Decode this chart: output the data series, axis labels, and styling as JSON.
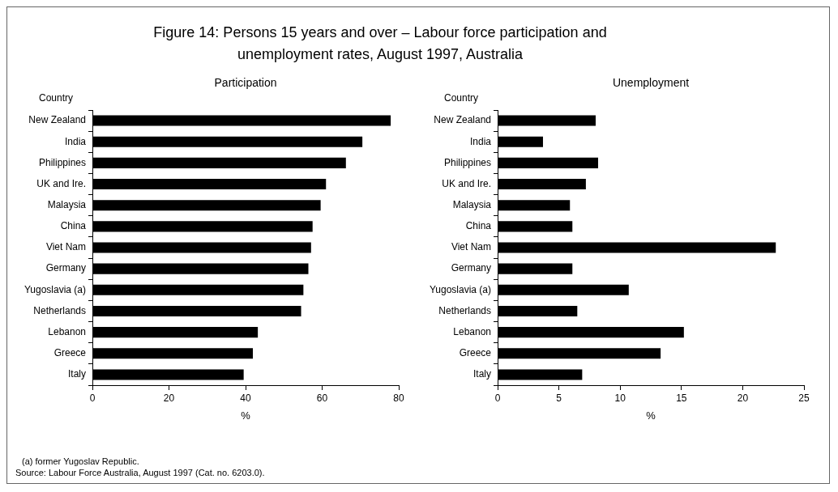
{
  "chart_data": [
    {
      "type": "bar",
      "orientation": "horizontal",
      "title": "Figure 14: Persons 15 years and over – Labour force participation and unemployment rates, August 1997, Australia",
      "subtitle": "Participation",
      "ylabel": "Country",
      "xlabel": "%",
      "categories": [
        "New Zealand",
        "India",
        "Philippines",
        "UK and Ire.",
        "Malaysia",
        "China",
        "Viet Nam",
        "Germany",
        "Yugoslavia (a)",
        "Netherlands",
        "Lebanon",
        "Greece",
        "Italy"
      ],
      "values": [
        77.9,
        70.5,
        66.2,
        61.0,
        59.6,
        57.5,
        57.1,
        56.4,
        55.1,
        54.5,
        43.2,
        41.9,
        39.5
      ],
      "color": "#000000",
      "xlim": [
        0,
        80
      ],
      "xticks": [
        0,
        20,
        40,
        60,
        80
      ],
      "grid": false,
      "annotations": [
        "(a) former Yugoslav Republic.",
        "Source: Labour Force Australia, August 1997 (Cat. no. 6203.0)."
      ]
    },
    {
      "type": "bar",
      "orientation": "horizontal",
      "subtitle": "Unemployment",
      "ylabel": "Country",
      "xlabel": "%",
      "categories": [
        "New Zealand",
        "India",
        "Philippines",
        "UK and Ire.",
        "Malaysia",
        "China",
        "Viet Nam",
        "Germany",
        "Yugoslavia (a)",
        "Netherlands",
        "Lebanon",
        "Greece",
        "Italy"
      ],
      "values": [
        8.0,
        3.7,
        8.2,
        7.2,
        5.9,
        6.1,
        22.7,
        6.1,
        10.7,
        6.5,
        15.2,
        13.3,
        6.9
      ],
      "color": "#000000",
      "xlim": [
        0,
        25
      ],
      "xticks": [
        0,
        5,
        10,
        15,
        20,
        25
      ],
      "grid": false
    }
  ]
}
